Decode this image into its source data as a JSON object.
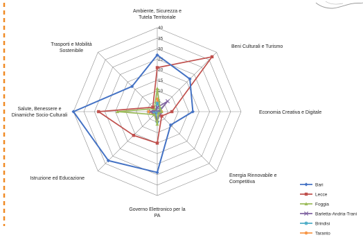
{
  "colors": {
    "accent_dash": "#f08a24",
    "grid": "#8c8c8c",
    "map_line": "#9a9a9a"
  },
  "chart_data": {
    "type": "radar",
    "categories": [
      "Ambiente, Sicurezza e Tutela Territoriale",
      "Beni Culturali e Turismo",
      "Economia Creativa e Digitale",
      "Energia Rinnovabile e Competitiva",
      "Governo Elettronico per la PA",
      "Istruzione ed Educazione",
      "Salute, Benessere e Dinamiche Socio-Culturali",
      "Trasporti e Mobilità Sostenibile"
    ],
    "category_lines": [
      [
        "Ambiente, Sicurezza e",
        "Tutela Territoriale"
      ],
      [
        "Beni Culturali e Turismo"
      ],
      [
        "Economia Creativa e Digitale"
      ],
      [
        "Energia Rinnovabile e",
        "Competitiva"
      ],
      [
        "Governo Elettronico per la",
        "PA"
      ],
      [
        "Istruzione ed Educazione"
      ],
      [
        "Salute, Benessere e",
        "Dinamiche Socio-Culturali"
      ],
      [
        "Trasporti e Mobilità",
        "Sostenibile"
      ]
    ],
    "r_ticks": [
      0,
      5,
      10,
      15,
      20,
      25,
      30,
      35,
      40
    ],
    "rlim": [
      0,
      40
    ],
    "grid": true,
    "legend_position": "bottom-right",
    "series": [
      {
        "name": "Bari",
        "color": "#4472c4",
        "marker": "diamond",
        "values": [
          27,
          22,
          17,
          9,
          29,
          33,
          40,
          17
        ]
      },
      {
        "name": "Lecce",
        "color": "#c0504d",
        "marker": "square",
        "values": [
          21,
          37,
          7,
          3,
          15,
          16,
          28,
          3
        ]
      },
      {
        "name": "Foggia",
        "color": "#9bbb59",
        "marker": "triangle",
        "values": [
          11,
          2,
          2,
          1,
          6,
          2,
          19,
          2
        ]
      },
      {
        "name": "Barletta-Andria-Trani",
        "color": "#8064a2",
        "marker": "cross",
        "values": [
          2,
          7,
          1,
          2,
          4,
          2,
          3,
          1
        ]
      },
      {
        "name": "Brindisi",
        "color": "#4bacc6",
        "marker": "star",
        "values": [
          4,
          2,
          1,
          1,
          5,
          1,
          2,
          1
        ]
      },
      {
        "name": "Taranto",
        "color": "#f79646",
        "marker": "circle",
        "values": [
          6,
          2,
          2,
          1,
          3,
          2,
          4,
          1
        ]
      }
    ]
  }
}
